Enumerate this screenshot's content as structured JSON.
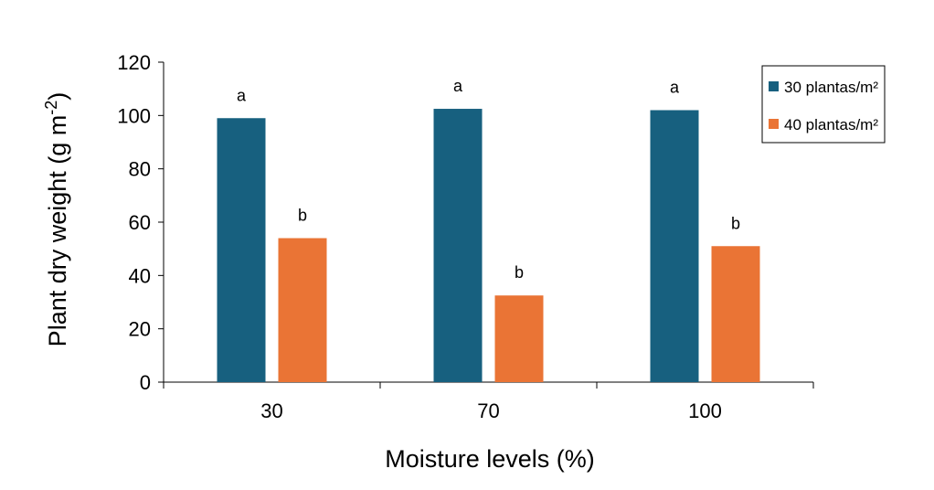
{
  "chart_data": {
    "type": "bar",
    "title": "",
    "xlabel": "Moisture levels (%)",
    "ylabel": "Plant dry weight (g m",
    "ylabel_sup": "-2",
    "ylabel_suffix": ")",
    "ylim": [
      0,
      120
    ],
    "yticks": [
      0,
      20,
      40,
      60,
      80,
      100,
      120
    ],
    "categories": [
      "30",
      "70",
      "100"
    ],
    "series": [
      {
        "name": "30 plantas/m²",
        "color": "#17607F",
        "values": [
          99,
          102.5,
          102
        ],
        "labels": [
          "a",
          "a",
          "a"
        ]
      },
      {
        "name": "40 plantas/m²",
        "color": "#EA7435",
        "values": [
          54,
          32.5,
          51
        ],
        "labels": [
          "b",
          "b",
          "b"
        ]
      }
    ],
    "grid": false,
    "legend_position": "top-right"
  }
}
